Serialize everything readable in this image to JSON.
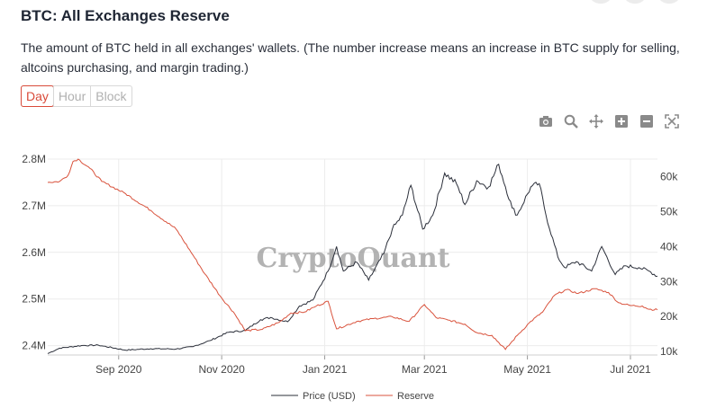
{
  "header": {
    "title": "BTC: All Exchanges Reserve",
    "description": "The amount of BTC held in all exchanges' wallets. (The number increase means an increase in BTC supply for selling, altcoins purchasing, and margin trading.)"
  },
  "tabs": [
    {
      "label": "Day",
      "active": true
    },
    {
      "label": "Hour",
      "active": false
    },
    {
      "label": "Block",
      "active": false
    }
  ],
  "toolbar": [
    "camera-icon",
    "zoom-icon",
    "pan-icon",
    "zoom-in-icon",
    "zoom-out-icon",
    "autoscale-icon"
  ],
  "watermark": "CryptoQuant",
  "colors": {
    "price": "#2b2f3a",
    "reserve": "#d9533d",
    "accent": "#d94b3a"
  },
  "chart_data": {
    "type": "line",
    "x_ticks": [
      "Sep 2020",
      "Nov 2020",
      "Jan 2021",
      "Mar 2021",
      "May 2021",
      "Jul 2021"
    ],
    "y_left": {
      "ticks": [
        "2.4M",
        "2.5M",
        "2.6M",
        "2.7M",
        "2.8M"
      ],
      "range": [
        2380000,
        2800000
      ]
    },
    "y_right": {
      "ticks": [
        "10k",
        "20k",
        "30k",
        "40k",
        "50k",
        "60k"
      ],
      "range": [
        9000,
        65000
      ]
    },
    "x_range": [
      "2020-07-21",
      "2021-07-17"
    ],
    "grid": true,
    "legend_placement": "bottom-center",
    "series": [
      {
        "name": "Price (USD)",
        "axis": "right",
        "points": [
          [
            "2020-07-21",
            9400
          ],
          [
            "2020-07-28",
            10950
          ],
          [
            "2020-08-10",
            11700
          ],
          [
            "2020-08-20",
            11800
          ],
          [
            "2020-09-05",
            10400
          ],
          [
            "2020-09-20",
            10800
          ],
          [
            "2020-10-05",
            10700
          ],
          [
            "2020-10-15",
            11400
          ],
          [
            "2020-10-25",
            13100
          ],
          [
            "2020-11-05",
            15500
          ],
          [
            "2020-11-15",
            16000
          ],
          [
            "2020-11-24",
            19100
          ],
          [
            "2020-11-30",
            19700
          ],
          [
            "2020-12-10",
            18500
          ],
          [
            "2020-12-17",
            23000
          ],
          [
            "2020-12-25",
            24700
          ],
          [
            "2021-01-03",
            33000
          ],
          [
            "2021-01-08",
            40000
          ],
          [
            "2021-01-12",
            33000
          ],
          [
            "2021-01-20",
            35500
          ],
          [
            "2021-01-27",
            30400
          ],
          [
            "2021-02-05",
            38000
          ],
          [
            "2021-02-10",
            45000
          ],
          [
            "2021-02-16",
            49000
          ],
          [
            "2021-02-21",
            57500
          ],
          [
            "2021-02-28",
            45000
          ],
          [
            "2021-03-06",
            49000
          ],
          [
            "2021-03-13",
            61000
          ],
          [
            "2021-03-20",
            58000
          ],
          [
            "2021-03-25",
            52000
          ],
          [
            "2021-04-01",
            58800
          ],
          [
            "2021-04-08",
            57000
          ],
          [
            "2021-04-14",
            63500
          ],
          [
            "2021-04-22",
            51000
          ],
          [
            "2021-04-25",
            49000
          ],
          [
            "2021-05-03",
            57000
          ],
          [
            "2021-05-08",
            58000
          ],
          [
            "2021-05-12",
            49000
          ],
          [
            "2021-05-19",
            37000
          ],
          [
            "2021-05-23",
            34000
          ],
          [
            "2021-05-30",
            35700
          ],
          [
            "2021-06-08",
            33000
          ],
          [
            "2021-06-14",
            40000
          ],
          [
            "2021-06-22",
            32000
          ],
          [
            "2021-06-28",
            34500
          ],
          [
            "2021-07-06",
            34000
          ],
          [
            "2021-07-12",
            33000
          ],
          [
            "2021-07-17",
            31500
          ]
        ]
      },
      {
        "name": "Reserve",
        "axis": "left",
        "points": [
          [
            "2020-07-21",
            2750000
          ],
          [
            "2020-07-28",
            2752000
          ],
          [
            "2020-08-02",
            2765000
          ],
          [
            "2020-08-05",
            2795000
          ],
          [
            "2020-08-08",
            2800000
          ],
          [
            "2020-08-15",
            2780000
          ],
          [
            "2020-08-22",
            2752000
          ],
          [
            "2020-09-05",
            2726000
          ],
          [
            "2020-09-20",
            2690000
          ],
          [
            "2020-10-05",
            2650000
          ],
          [
            "2020-10-15",
            2594000
          ],
          [
            "2020-10-22",
            2554000
          ],
          [
            "2020-11-01",
            2502000
          ],
          [
            "2020-11-08",
            2472000
          ],
          [
            "2020-11-15",
            2432000
          ],
          [
            "2020-11-25",
            2435000
          ],
          [
            "2020-12-05",
            2450000
          ],
          [
            "2020-12-12",
            2470000
          ],
          [
            "2020-12-20",
            2472000
          ],
          [
            "2020-12-27",
            2485000
          ],
          [
            "2021-01-03",
            2495000
          ],
          [
            "2021-01-08",
            2436000
          ],
          [
            "2021-01-20",
            2452000
          ],
          [
            "2021-01-30",
            2458000
          ],
          [
            "2021-02-10",
            2462000
          ],
          [
            "2021-02-20",
            2452000
          ],
          [
            "2021-03-01",
            2488000
          ],
          [
            "2021-03-08",
            2460000
          ],
          [
            "2021-03-15",
            2455000
          ],
          [
            "2021-03-25",
            2446000
          ],
          [
            "2021-04-01",
            2428000
          ],
          [
            "2021-04-10",
            2422000
          ],
          [
            "2021-04-18",
            2392000
          ],
          [
            "2021-04-25",
            2422000
          ],
          [
            "2021-05-03",
            2452000
          ],
          [
            "2021-05-10",
            2472000
          ],
          [
            "2021-05-17",
            2508000
          ],
          [
            "2021-05-24",
            2520000
          ],
          [
            "2021-05-31",
            2512000
          ],
          [
            "2021-06-10",
            2522000
          ],
          [
            "2021-06-18",
            2514000
          ],
          [
            "2021-06-24",
            2492000
          ],
          [
            "2021-07-01",
            2486000
          ],
          [
            "2021-07-08",
            2485000
          ],
          [
            "2021-07-12",
            2478000
          ],
          [
            "2021-07-17",
            2477000
          ]
        ]
      }
    ]
  }
}
